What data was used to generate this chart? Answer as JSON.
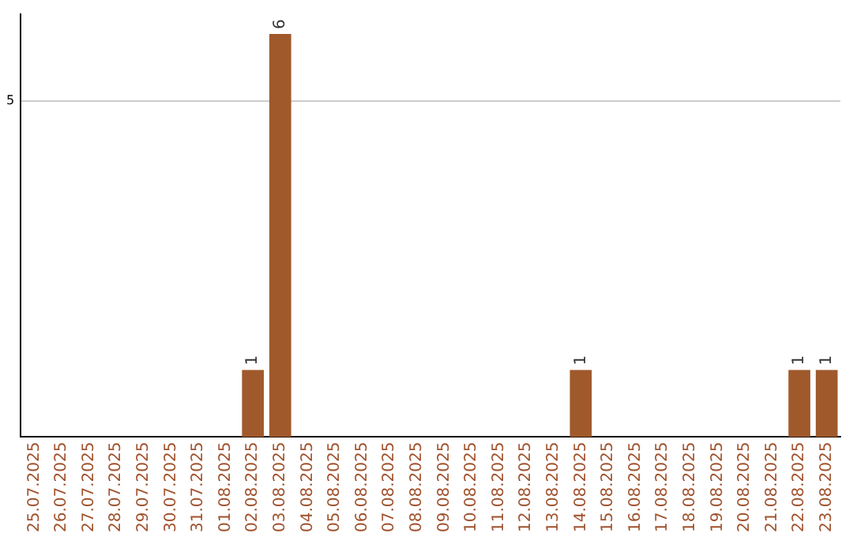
{
  "chart_data": {
    "type": "bar",
    "categories": [
      "25.07.2025",
      "26.07.2025",
      "27.07.2025",
      "28.07.2025",
      "29.07.2025",
      "30.07.2025",
      "31.07.2025",
      "01.08.2025",
      "02.08.2025",
      "03.08.2025",
      "04.08.2025",
      "05.08.2025",
      "06.08.2025",
      "07.08.2025",
      "08.08.2025",
      "09.08.2025",
      "10.08.2025",
      "11.08.2025",
      "12.08.2025",
      "13.08.2025",
      "14.08.2025",
      "15.08.2025",
      "16.08.2025",
      "17.08.2025",
      "18.08.2025",
      "19.08.2025",
      "20.08.2025",
      "21.08.2025",
      "22.08.2025",
      "23.08.2025"
    ],
    "values": [
      0,
      0,
      0,
      0,
      0,
      0,
      0,
      0,
      1,
      6,
      0,
      0,
      0,
      0,
      0,
      0,
      0,
      0,
      0,
      0,
      1,
      0,
      0,
      0,
      0,
      0,
      0,
      0,
      1,
      1
    ],
    "value_labels": [
      null,
      null,
      null,
      null,
      null,
      null,
      null,
      null,
      "1",
      "6",
      null,
      null,
      null,
      null,
      null,
      null,
      null,
      null,
      null,
      null,
      "1",
      null,
      null,
      null,
      null,
      null,
      null,
      null,
      "1",
      "1"
    ],
    "color": "#a0592b",
    "ylim": [
      0,
      6.3
    ],
    "yticks": [
      5
    ],
    "grid": "y"
  }
}
